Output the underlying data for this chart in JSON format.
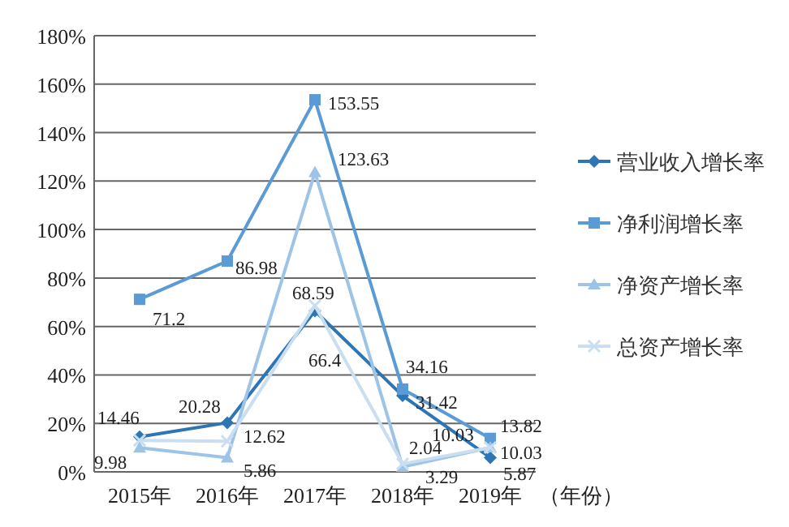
{
  "chart_data": {
    "type": "line",
    "categories": [
      "2015年",
      "2016年",
      "2017年",
      "2018年",
      "2019年"
    ],
    "xlabel": "（年份）",
    "ylim": [
      0,
      180
    ],
    "yticks": [
      {
        "value": 0,
        "label": "0%"
      },
      {
        "value": 20,
        "label": "20%"
      },
      {
        "value": 40,
        "label": "40%"
      },
      {
        "value": 60,
        "label": "60%"
      },
      {
        "value": 80,
        "label": "80%"
      },
      {
        "value": 100,
        "label": "100%"
      },
      {
        "value": 120,
        "label": "120%"
      },
      {
        "value": 140,
        "label": "140%"
      },
      {
        "value": 160,
        "label": "160%"
      },
      {
        "value": 180,
        "label": "180%"
      }
    ],
    "grid": "y",
    "legend": "right",
    "series": [
      {
        "name": "营业收入增长率",
        "color": "#2e75b6",
        "marker": "diamond",
        "values": [
          14.46,
          20.28,
          66.4,
          31.42,
          5.87
        ],
        "value_labels": [
          "14.46",
          "20.28",
          "66.4",
          "31.42",
          "5.87"
        ]
      },
      {
        "name": "净利润增长率",
        "color": "#5b9bd5",
        "marker": "square",
        "values": [
          71.2,
          86.98,
          153.55,
          34.16,
          13.82
        ],
        "value_labels": [
          "71.2",
          "86.98",
          "153.55",
          "34.16",
          "13.82"
        ]
      },
      {
        "name": "净资产增长率",
        "color": "#9dc3e6",
        "marker": "triangle",
        "values": [
          9.98,
          5.86,
          123.63,
          2.04,
          10.03
        ],
        "value_labels": [
          "9.98",
          "5.86",
          "123.63",
          "2.04",
          "10.03"
        ]
      },
      {
        "name": "总资产增长率",
        "color": "#c9def0",
        "marker": "cross",
        "values": [
          13,
          12.62,
          68.59,
          3.29,
          10.03
        ],
        "value_labels": [
          null,
          "12.62",
          "68.59",
          "3.29",
          "10.03"
        ]
      }
    ]
  }
}
